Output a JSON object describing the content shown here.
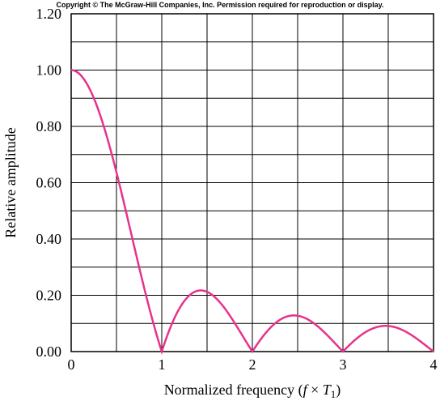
{
  "copyright": "Copyright © The McGraw-Hill Companies, Inc. Permission required for reproduction or display.",
  "chart_data": {
    "type": "line",
    "title": "",
    "xlabel_prefix": "Normalized frequency (",
    "xlabel_f": "f",
    "xlabel_times": " × ",
    "xlabel_T": "T",
    "xlabel_sub": "1",
    "xlabel_suffix": ")",
    "ylabel": "Relative amplitude",
    "xlim": [
      0,
      4
    ],
    "ylim": [
      0,
      1.2
    ],
    "x_ticks": [
      0,
      1,
      2,
      3,
      4
    ],
    "x_tick_labels": [
      "0",
      "1",
      "2",
      "3",
      "4"
    ],
    "y_ticks": [
      0,
      0.2,
      0.4,
      0.6,
      0.8,
      1.0,
      1.2
    ],
    "y_tick_labels": [
      "0.00",
      "0.20",
      "0.40",
      "0.60",
      "0.80",
      "1.00",
      "1.20"
    ],
    "grid_x_step": 0.5,
    "grid_y_step": 0.1,
    "grid": true,
    "series": [
      {
        "color": "#e6338a",
        "function": "abs(sin(pi*x)/(pi*x))",
        "x": [
          0,
          0.5,
          1,
          1.43,
          2,
          2.46,
          3,
          3.47,
          4
        ],
        "y": [
          1.0,
          0.64,
          0.0,
          0.22,
          0.0,
          0.13,
          0.0,
          0.09,
          0.0
        ]
      }
    ]
  }
}
